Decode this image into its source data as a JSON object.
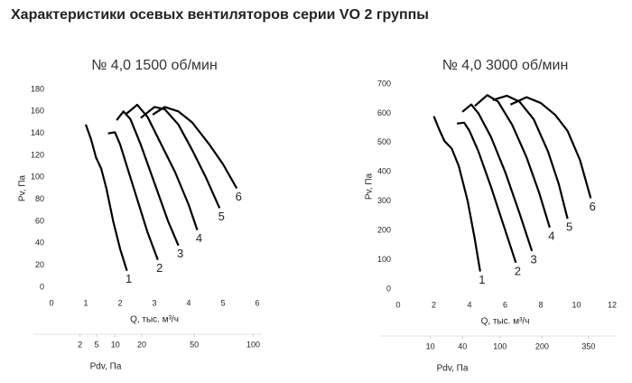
{
  "title": "Характеристики осевых вентиляторов серии VO 2 группы",
  "chart_data": [
    {
      "type": "line",
      "title": "№ 4,0 1500 об/мин",
      "xlabel": "Q, тыс. м³/ч",
      "ylabel": "Pv, Па",
      "xlim": [
        0,
        6
      ],
      "xticks": [
        0,
        1,
        2,
        3,
        4,
        5,
        6
      ],
      "ylim": [
        0,
        180
      ],
      "yticks": [
        0,
        20,
        40,
        60,
        80,
        100,
        120,
        140,
        160,
        180
      ],
      "x2label": "Pdv, Па",
      "x2scale": "sqrt",
      "x2lim": [
        0,
        104
      ],
      "x2ticks": [
        2,
        5,
        10,
        20,
        50,
        100
      ],
      "series": [
        {
          "name": "1",
          "color": "#000000",
          "x": [
            1.0,
            1.15,
            1.3,
            1.45,
            1.6,
            1.8,
            2.0,
            2.2
          ],
          "values": [
            148,
            135,
            118,
            108,
            90,
            60,
            35,
            15
          ]
        },
        {
          "name": "2",
          "color": "#000000",
          "x": [
            1.65,
            1.85,
            2.0,
            2.2,
            2.5,
            2.8,
            3.1
          ],
          "values": [
            140,
            141,
            130,
            110,
            80,
            50,
            25
          ]
        },
        {
          "name": "3",
          "color": "#000000",
          "x": [
            1.9,
            2.1,
            2.3,
            2.6,
            3.0,
            3.4,
            3.7
          ],
          "values": [
            152,
            160,
            153,
            130,
            95,
            60,
            38
          ]
        },
        {
          "name": "4",
          "color": "#000000",
          "x": [
            2.15,
            2.5,
            2.8,
            3.2,
            3.6,
            4.0,
            4.25
          ],
          "values": [
            157,
            166,
            155,
            130,
            105,
            75,
            52
          ]
        },
        {
          "name": "5",
          "color": "#000000",
          "x": [
            2.6,
            3.0,
            3.3,
            3.7,
            4.1,
            4.5,
            4.9
          ],
          "values": [
            154,
            164,
            162,
            148,
            125,
            100,
            72
          ]
        },
        {
          "name": "6",
          "color": "#000000",
          "x": [
            2.95,
            3.3,
            3.7,
            4.1,
            4.6,
            5.0,
            5.4
          ],
          "values": [
            157,
            164,
            160,
            150,
            130,
            112,
            90
          ]
        }
      ]
    },
    {
      "type": "line",
      "title": "№ 4,0 3000 об/мин",
      "xlabel": "Q, тыс. м³/ч",
      "ylabel": "Pv, Па",
      "xlim": [
        0,
        12
      ],
      "xticks": [
        0,
        2,
        4,
        6,
        8,
        10,
        12
      ],
      "ylim": [
        0,
        700
      ],
      "yticks": [
        0,
        100,
        200,
        300,
        400,
        500,
        600,
        700
      ],
      "x2label": "Pdv, Па",
      "x2scale": "sqrt",
      "x2lim": [
        0,
        442
      ],
      "x2ticks": [
        10,
        40,
        100,
        200,
        350
      ],
      "series": [
        {
          "name": "1",
          "color": "#000000",
          "x": [
            2.0,
            2.3,
            2.6,
            3.0,
            3.4,
            3.9,
            4.3,
            4.6
          ],
          "values": [
            590,
            545,
            505,
            480,
            420,
            300,
            170,
            60
          ]
        },
        {
          "name": "2",
          "color": "#000000",
          "x": [
            3.3,
            3.7,
            4.0,
            4.5,
            5.2,
            5.9,
            6.6
          ],
          "values": [
            565,
            568,
            540,
            470,
            350,
            220,
            90
          ]
        },
        {
          "name": "3",
          "color": "#000000",
          "x": [
            3.6,
            4.1,
            4.5,
            5.2,
            6.0,
            6.8,
            7.5
          ],
          "values": [
            605,
            630,
            600,
            520,
            400,
            260,
            130
          ]
        },
        {
          "name": "4",
          "color": "#000000",
          "x": [
            4.3,
            5.0,
            5.6,
            6.4,
            7.2,
            7.9,
            8.5
          ],
          "values": [
            625,
            662,
            640,
            560,
            450,
            330,
            210
          ]
        },
        {
          "name": "5",
          "color": "#000000",
          "x": [
            5.3,
            6.1,
            6.8,
            7.6,
            8.4,
            9.0,
            9.5
          ],
          "values": [
            645,
            660,
            640,
            580,
            470,
            360,
            240
          ]
        },
        {
          "name": "6",
          "color": "#000000",
          "x": [
            6.3,
            7.2,
            8.0,
            8.8,
            9.5,
            10.2,
            10.8
          ],
          "values": [
            630,
            655,
            635,
            595,
            540,
            440,
            310
          ]
        }
      ]
    }
  ]
}
